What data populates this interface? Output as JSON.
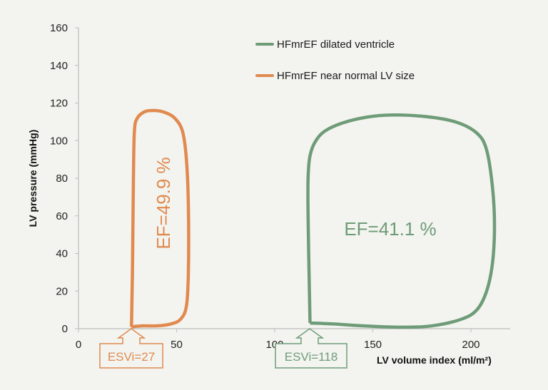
{
  "chart_data": {
    "type": "line",
    "xlabel": "LV volume index (ml/m²)",
    "ylabel": "LV pressure (mmHg)",
    "xlim": [
      0,
      220
    ],
    "ylim": [
      0,
      160
    ],
    "x_ticks": [
      "0",
      "50",
      "100",
      "150",
      "200"
    ],
    "y_ticks": [
      "0",
      "20",
      "40",
      "60",
      "80",
      "100",
      "120",
      "140",
      "160"
    ],
    "grid": false,
    "legend_position": "top-right",
    "series": [
      {
        "name": "HFmrEF dilated ventricle",
        "color": "#6f9c78",
        "closed": true,
        "x": [
          118,
          117.5,
          117,
          117,
          118,
          121,
          127,
          140,
          156,
          175,
          192,
          203,
          208,
          211,
          212,
          211,
          208,
          203,
          195,
          180,
          164,
          145,
          130,
          118
        ],
        "y": [
          3,
          30,
          60,
          80,
          92,
          100,
          106,
          111,
          113.5,
          113,
          110,
          104,
          95,
          75,
          55,
          35,
          20,
          10,
          5,
          1.5,
          0.8,
          1.5,
          2.5,
          3
        ]
      },
      {
        "name": "HFmrEF near normal LV size",
        "color": "#e08a50",
        "closed": true,
        "x": [
          27,
          27.5,
          28,
          28.5,
          30,
          34,
          39,
          44,
          49,
          53,
          55,
          56,
          56,
          55,
          52,
          47,
          40,
          33,
          27
        ],
        "y": [
          1,
          30,
          80,
          105,
          112,
          115.5,
          116,
          115,
          112,
          105,
          90,
          65,
          30,
          12,
          5,
          2.5,
          1.5,
          1.5,
          1
        ]
      }
    ],
    "annotations": {
      "ef_near_normal": "EF=49.9 %",
      "ef_dilated": "EF=41.1 %",
      "esvi_near_normal": "ESVi=27",
      "esvi_dilated": "ESVi=118"
    }
  }
}
